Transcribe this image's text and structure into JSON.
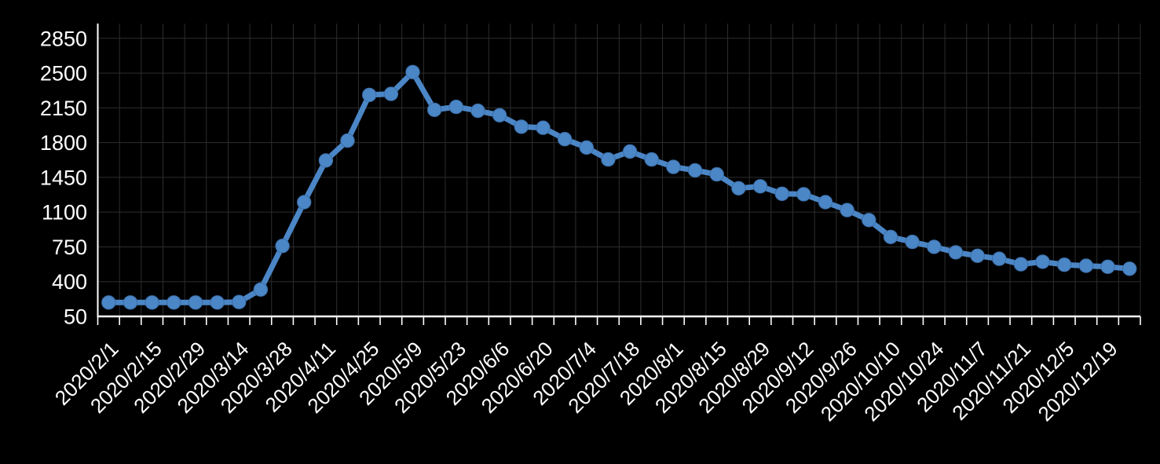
{
  "chart_data": {
    "type": "line",
    "title": "",
    "xlabel": "",
    "ylabel": "",
    "grid": true,
    "legend": false,
    "ylim": [
      50,
      2850
    ],
    "y_ticks": [
      50,
      400,
      750,
      1100,
      1450,
      1800,
      2150,
      2500,
      2850
    ],
    "x": [
      "2020/2/1",
      "2020/2/8",
      "2020/2/15",
      "2020/2/22",
      "2020/2/29",
      "2020/3/7",
      "2020/3/14",
      "2020/3/21",
      "2020/3/28",
      "2020/4/4",
      "2020/4/11",
      "2020/4/18",
      "2020/4/25",
      "2020/5/2",
      "2020/5/9",
      "2020/5/16",
      "2020/5/23",
      "2020/5/30",
      "2020/6/6",
      "2020/6/13",
      "2020/6/20",
      "2020/6/27",
      "2020/7/4",
      "2020/7/11",
      "2020/7/18",
      "2020/7/25",
      "2020/8/1",
      "2020/8/8",
      "2020/8/15",
      "2020/8/22",
      "2020/8/29",
      "2020/9/5",
      "2020/9/12",
      "2020/9/19",
      "2020/9/26",
      "2020/10/3",
      "2020/10/10",
      "2020/10/17",
      "2020/10/24",
      "2020/10/31",
      "2020/11/7",
      "2020/11/14",
      "2020/11/21",
      "2020/11/28",
      "2020/12/5",
      "2020/12/12",
      "2020/12/19",
      "2020/12/26"
    ],
    "values": [
      190,
      190,
      190,
      190,
      190,
      190,
      195,
      320,
      760,
      1200,
      1620,
      1820,
      2280,
      2290,
      2510,
      2130,
      2160,
      2120,
      2075,
      1960,
      1950,
      1835,
      1750,
      1630,
      1710,
      1630,
      1555,
      1520,
      1480,
      1340,
      1360,
      1285,
      1280,
      1200,
      1120,
      1020,
      850,
      800,
      750,
      695,
      660,
      630,
      575,
      600,
      570,
      560,
      550,
      530
    ],
    "x_axis_tick_labels": [
      "2020/2/1",
      "2020/2/15",
      "2020/2/29",
      "2020/3/14",
      "2020/3/28",
      "2020/4/11",
      "2020/4/25",
      "2020/5/9",
      "2020/5/23",
      "2020/6/6",
      "2020/6/20",
      "2020/7/4",
      "2020/7/18",
      "2020/8/1",
      "2020/8/15",
      "2020/8/29",
      "2020/9/12",
      "2020/9/26",
      "2020/10/10",
      "2020/10/24",
      "2020/11/7",
      "2020/11/21",
      "2020/12/5",
      "2020/12/19"
    ],
    "colors": {
      "background": "#000000",
      "line": "#4b86c6",
      "marker": "#4b86c6",
      "marker_border": "#3a6da6",
      "gridline": "#2d2d2d",
      "axis": "#ffffff",
      "text": "#ffffff"
    }
  }
}
